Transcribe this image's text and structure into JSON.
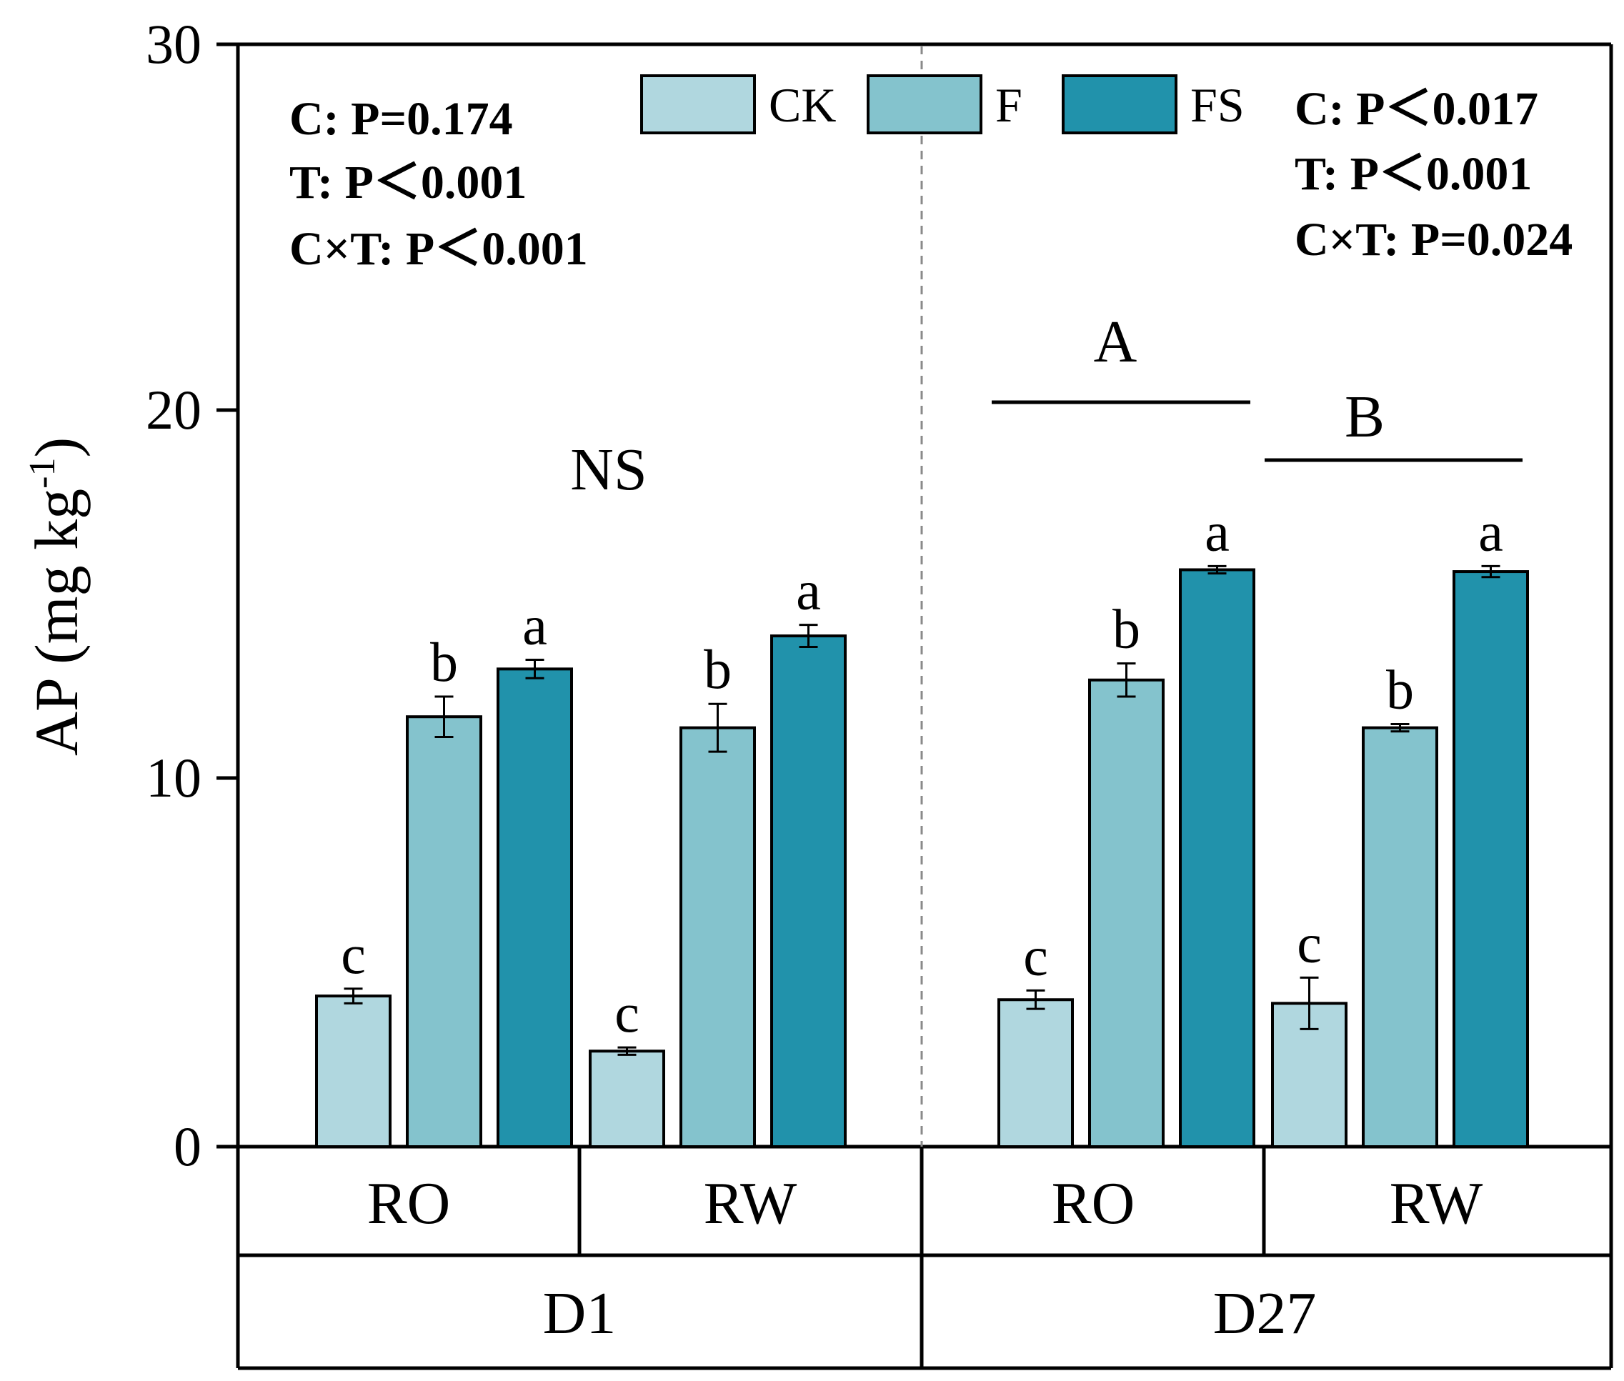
{
  "chart_data": {
    "type": "bar",
    "ylabel": "AP (mg kg",
    "ylabel_sup": "-1",
    "ylabel_close": ")",
    "ylim": [
      0,
      30
    ],
    "yticks": [
      0,
      10,
      20,
      30
    ],
    "ytick_labels": [
      "0",
      "10",
      "20",
      "30"
    ],
    "legend": [
      "CK",
      "F",
      "FS"
    ],
    "colors": [
      "#b0d7df",
      "#84c3cd",
      "#2192ab"
    ],
    "divider_style": "dashed",
    "panels": [
      {
        "label": "D1",
        "groups": [
          {
            "label": "RO",
            "bars": [
              {
                "series": "CK",
                "value": 4.1,
                "error": 0.2,
                "letter": "c"
              },
              {
                "series": "F",
                "value": 11.7,
                "error": 0.55,
                "letter": "b"
              },
              {
                "series": "FS",
                "value": 13.0,
                "error": 0.25,
                "letter": "a"
              }
            ]
          },
          {
            "label": "RW",
            "bars": [
              {
                "series": "CK",
                "value": 2.6,
                "error": 0.1,
                "letter": "c"
              },
              {
                "series": "F",
                "value": 11.4,
                "error": 0.65,
                "letter": "b"
              },
              {
                "series": "FS",
                "value": 13.9,
                "error": 0.3,
                "letter": "a"
              }
            ]
          }
        ],
        "significance": "NS",
        "stats": [
          "C: P=0.174",
          "T: P＜0.001",
          "C×T: P＜0.001"
        ]
      },
      {
        "label": "D27",
        "groups": [
          {
            "label": "RO",
            "bars": [
              {
                "series": "CK",
                "value": 4.0,
                "error": 0.25,
                "letter": "c"
              },
              {
                "series": "F",
                "value": 12.7,
                "error": 0.45,
                "letter": "b"
              },
              {
                "series": "FS",
                "value": 15.7,
                "error": 0.1,
                "letter": "a"
              }
            ]
          },
          {
            "label": "RW",
            "bars": [
              {
                "series": "CK",
                "value": 3.9,
                "error": 0.7,
                "letter": "c"
              },
              {
                "series": "F",
                "value": 11.4,
                "error": 0.1,
                "letter": "b"
              },
              {
                "series": "FS",
                "value": 15.65,
                "error": 0.15,
                "letter": "a"
              }
            ]
          }
        ],
        "group_letters": [
          "A",
          "B"
        ],
        "stats": [
          "C: P＜0.017",
          "T: P＜0.001",
          "C×T: P=0.024"
        ]
      }
    ]
  }
}
